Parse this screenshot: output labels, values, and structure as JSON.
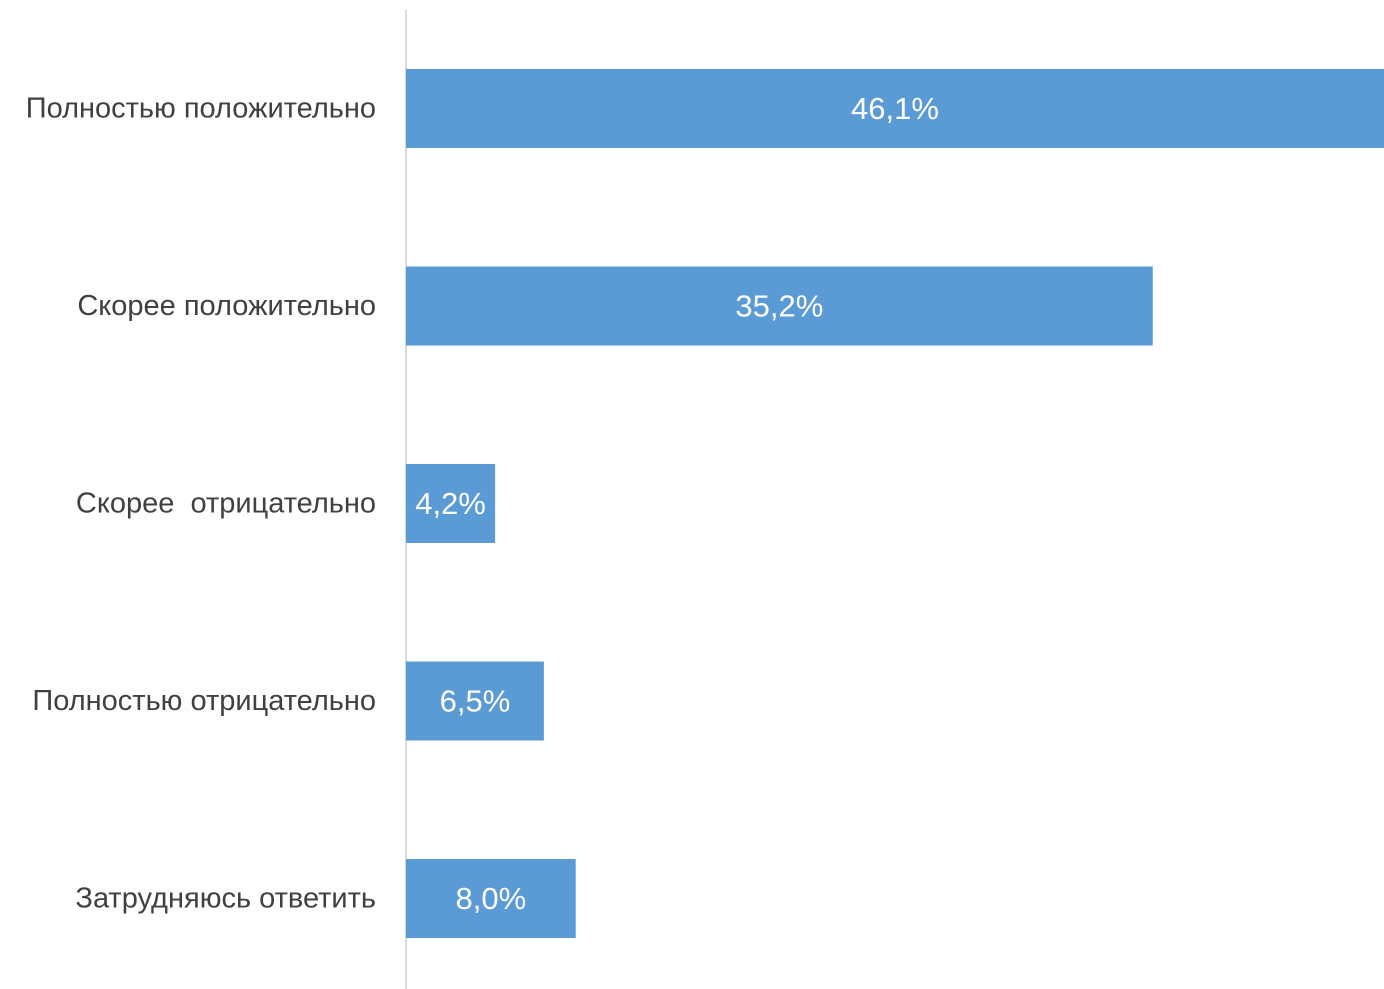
{
  "chart_data": {
    "type": "bar",
    "orientation": "horizontal",
    "categories": [
      "Полностью положительно",
      "Скорее положительно",
      "Скорее  отрицательно",
      "Полностью отрицательно",
      "Затрудняюсь ответить"
    ],
    "values": [
      46.1,
      35.2,
      4.2,
      6.5,
      8.0
    ],
    "data_labels": [
      "46,1%",
      "35,2%",
      "4,2%",
      "6,5%",
      "8,0%"
    ],
    "bar_color": "#5b9bd5",
    "xlim": [
      0,
      46.1
    ],
    "grid": false,
    "legend": "none"
  }
}
